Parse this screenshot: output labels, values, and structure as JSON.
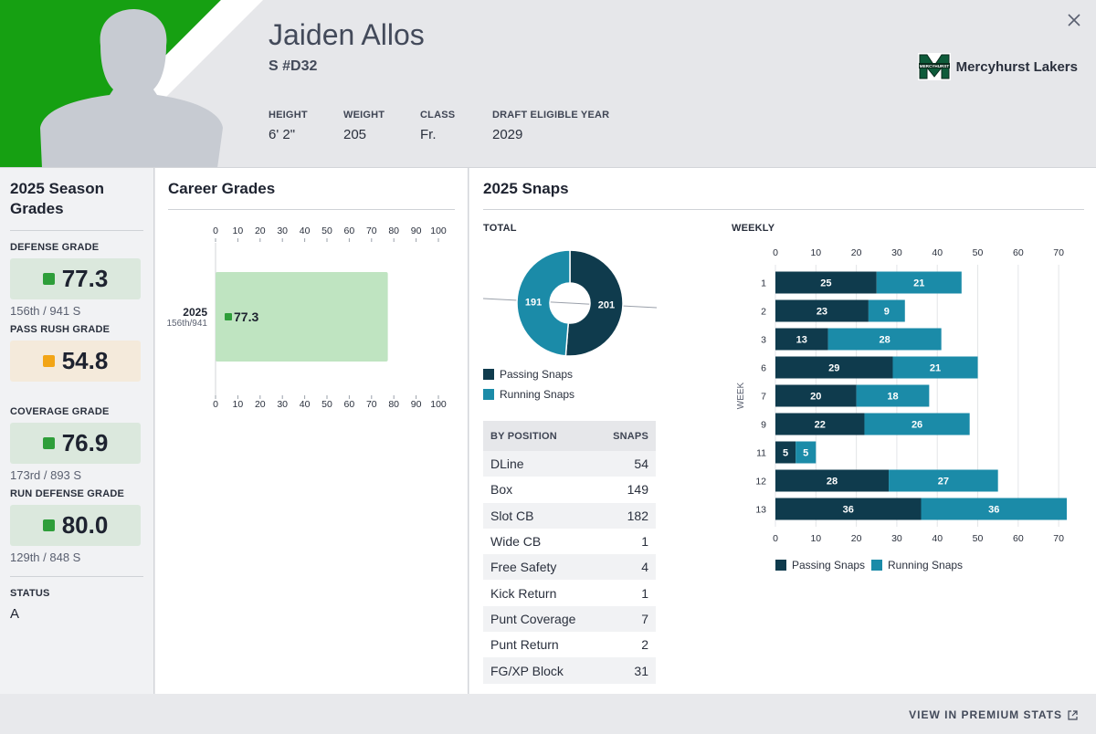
{
  "player": {
    "name": "Jaiden Allos",
    "position_number": "S #D32",
    "attributes": [
      {
        "label": "HEIGHT",
        "value": "6' 2\""
      },
      {
        "label": "WEIGHT",
        "value": "205"
      },
      {
        "label": "CLASS",
        "value": "Fr."
      },
      {
        "label": "DRAFT ELIGIBLE YEAR",
        "value": "2029"
      }
    ],
    "team": "Mercyhurst Lakers",
    "team_logo_text": "MERCYHURST"
  },
  "season_grades": {
    "title": "2025 Season Grades",
    "grades": [
      {
        "label": "DEFENSE GRADE",
        "value": "77.3",
        "rank": "156th / 941 S",
        "color": "#2e9e3a"
      },
      {
        "label": "PASS RUSH GRADE",
        "value": "54.8",
        "rank": "",
        "color": "#f2a516"
      },
      {
        "label": "COVERAGE GRADE",
        "value": "76.9",
        "rank": "173rd / 893 S",
        "color": "#2e9e3a"
      },
      {
        "label": "RUN DEFENSE GRADE",
        "value": "80.0",
        "rank": "129th / 848 S",
        "color": "#2e9e3a"
      }
    ],
    "status_label": "STATUS",
    "status_value": "A"
  },
  "career_grades": {
    "title": "Career Grades"
  },
  "snaps": {
    "title": "2025 Snaps",
    "total_label": "TOTAL",
    "weekly_label": "WEEKLY",
    "week_axis_label": "WEEK",
    "by_position_header": "BY POSITION",
    "snaps_header": "SNAPS",
    "positions": [
      {
        "name": "DLine",
        "snaps": "54"
      },
      {
        "name": "Box",
        "snaps": "149"
      },
      {
        "name": "Slot CB",
        "snaps": "182"
      },
      {
        "name": "Wide CB",
        "snaps": "1"
      },
      {
        "name": "Free Safety",
        "snaps": "4"
      },
      {
        "name": "Kick Return",
        "snaps": "1"
      },
      {
        "name": "Punt Coverage",
        "snaps": "7"
      },
      {
        "name": "Punt Return",
        "snaps": "2"
      },
      {
        "name": "FG/XP Block",
        "snaps": "31"
      }
    ]
  },
  "footer": {
    "link_label": "VIEW IN PREMIUM STATS"
  },
  "colors": {
    "passing": "#0f3b4d",
    "running": "#1b8ba8",
    "grade_green": "#2e9e3a",
    "grade_fill": "#bfe4c1"
  },
  "chart_data": [
    {
      "type": "bar",
      "orientation": "horizontal",
      "title": "Career Grades",
      "categories": [
        "2025"
      ],
      "category_sublabels": [
        "156th/941"
      ],
      "values": [
        77.3
      ],
      "value_labels": [
        "77.3"
      ],
      "xlim": [
        0,
        100
      ],
      "xticks": [
        0,
        10,
        20,
        30,
        40,
        50,
        60,
        70,
        80,
        90,
        100
      ]
    },
    {
      "type": "pie",
      "title": "TOTAL",
      "variant": "donut",
      "labels": [
        "Passing Snaps",
        "Running Snaps"
      ],
      "values": [
        201,
        191
      ]
    },
    {
      "type": "bar",
      "orientation": "horizontal",
      "stacked": true,
      "title": "WEEKLY",
      "ylabel": "WEEK",
      "categories": [
        "1",
        "2",
        "3",
        "6",
        "7",
        "9",
        "11",
        "12",
        "13"
      ],
      "series": [
        {
          "name": "Passing Snaps",
          "values": [
            25,
            23,
            13,
            29,
            20,
            22,
            5,
            28,
            36
          ]
        },
        {
          "name": "Running Snaps",
          "values": [
            21,
            9,
            28,
            21,
            18,
            26,
            5,
            27,
            36
          ]
        }
      ],
      "xlim": [
        0,
        72
      ],
      "xticks": [
        0,
        10,
        20,
        30,
        40,
        50,
        60,
        70
      ],
      "legend": "bottom"
    }
  ]
}
